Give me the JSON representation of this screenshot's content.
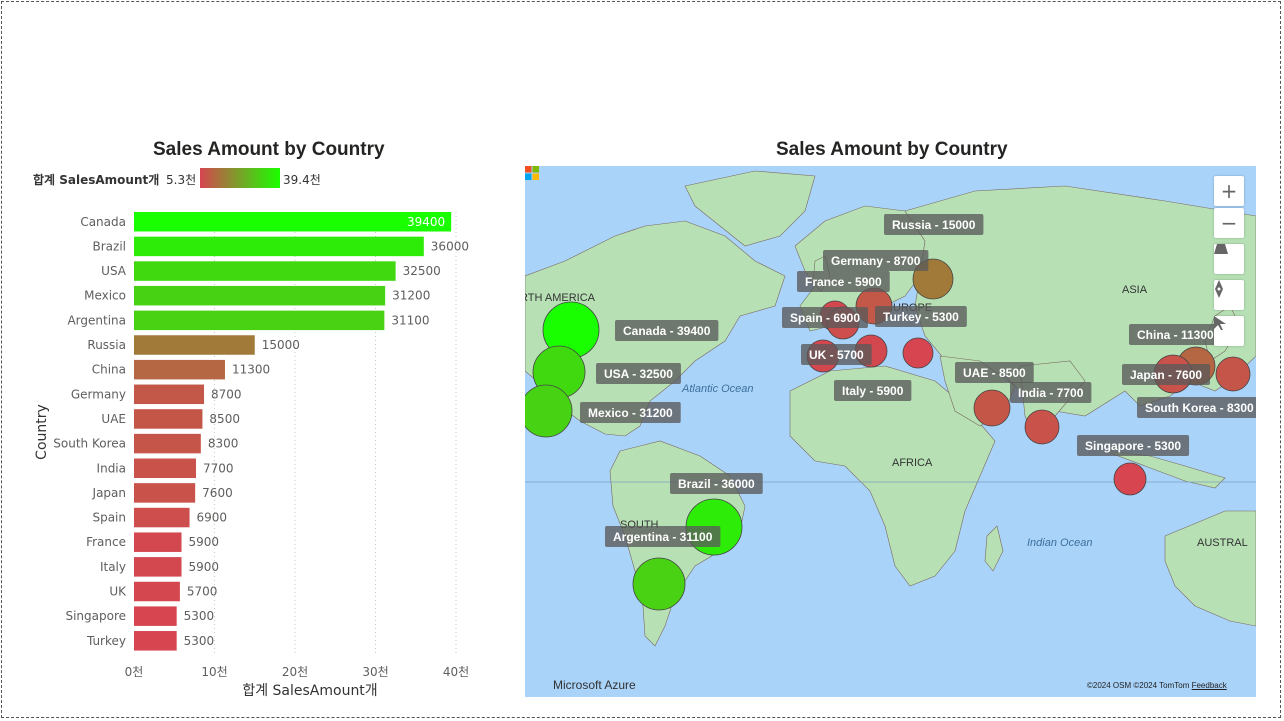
{
  "bar_visual": {
    "title": "Sales Amount by Country",
    "legend": {
      "title": "합계 SalesAmount개",
      "min_label": "5.3천",
      "max_label": "39.4천",
      "low_color": "#d64550",
      "high_color": "#1aff00"
    }
  },
  "map_visual": {
    "title": "Sales Amount by Country",
    "regions": [
      "RTH AMERICA",
      "ASIA",
      "UROPE",
      "AFRICA",
      "SOUTH",
      "AUSTRAL"
    ],
    "oceans": [
      "Atlantic Ocean",
      "Indian Ocean"
    ],
    "labels": [
      "Canada - 39400",
      "USA - 32500",
      "Mexico - 31200",
      "Brazil - 36000",
      "Argentina - 31100",
      "Russia - 15000",
      "Germany - 8700",
      "France - 5900",
      "Spain - 6900",
      "UK - 5700",
      "Turkey - 5300",
      "Italy - 5900",
      "UAE - 8500",
      "India - 7700",
      "China - 11300",
      "Japan - 7600",
      "South Korea - 8300",
      "Singapore - 5300"
    ],
    "controls": {
      "zoom_in": "+",
      "zoom_out": "−"
    },
    "brand": "Microsoft Azure",
    "attribution": "©2024 OSM  ©2024 TomTom",
    "feedback": "Feedback"
  },
  "chart_data": [
    {
      "type": "bar",
      "orientation": "horizontal",
      "title": "Sales Amount by Country",
      "xlabel": "합계 SalesAmount개",
      "ylabel": "Country",
      "xlim": [
        0,
        40000
      ],
      "xticks": [
        "0천",
        "10천",
        "20천",
        "30천",
        "40천"
      ],
      "categories": [
        "Canada",
        "Brazil",
        "USA",
        "Mexico",
        "Argentina",
        "Russia",
        "China",
        "Germany",
        "UAE",
        "South Korea",
        "India",
        "Japan",
        "Spain",
        "France",
        "Italy",
        "UK",
        "Singapore",
        "Turkey"
      ],
      "values": [
        39400,
        36000,
        32500,
        31200,
        31100,
        15000,
        11300,
        8700,
        8500,
        8300,
        7700,
        7600,
        6900,
        5900,
        5900,
        5700,
        5300,
        5300
      ],
      "grid": "vertical dotted"
    },
    {
      "type": "bubble-map",
      "title": "Sales Amount by Country",
      "points": [
        {
          "country": "Canada",
          "value": 39400
        },
        {
          "country": "USA",
          "value": 32500
        },
        {
          "country": "Mexico",
          "value": 31200
        },
        {
          "country": "Brazil",
          "value": 36000
        },
        {
          "country": "Argentina",
          "value": 31100
        },
        {
          "country": "Russia",
          "value": 15000
        },
        {
          "country": "Germany",
          "value": 8700
        },
        {
          "country": "France",
          "value": 5900
        },
        {
          "country": "Spain",
          "value": 6900
        },
        {
          "country": "UK",
          "value": 5700
        },
        {
          "country": "Turkey",
          "value": 5300
        },
        {
          "country": "Italy",
          "value": 5900
        },
        {
          "country": "UAE",
          "value": 8500
        },
        {
          "country": "India",
          "value": 7700
        },
        {
          "country": "China",
          "value": 11300
        },
        {
          "country": "Japan",
          "value": 7600
        },
        {
          "country": "South Korea",
          "value": 8300
        },
        {
          "country": "Singapore",
          "value": 5300
        }
      ]
    }
  ]
}
